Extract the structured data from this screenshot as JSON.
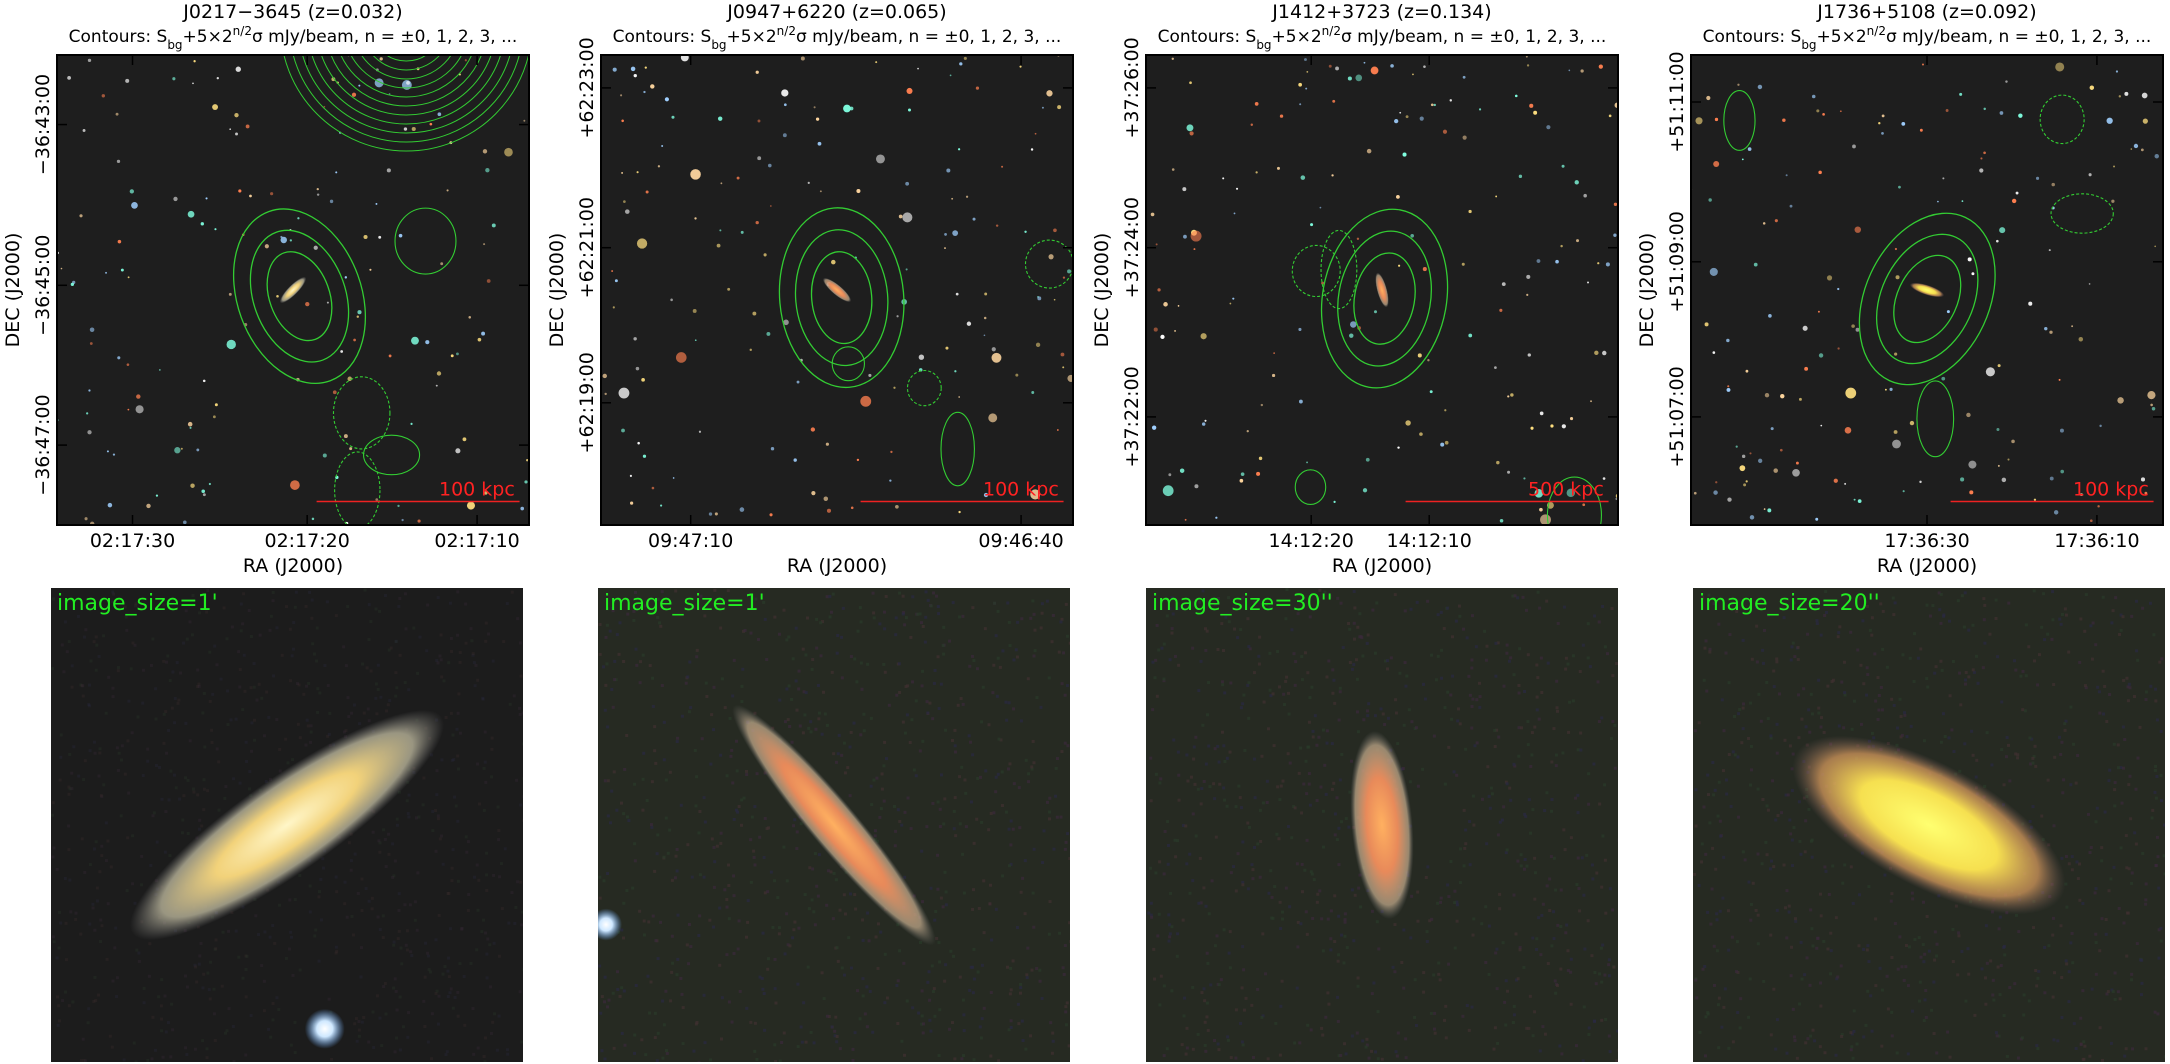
{
  "contour_label": {
    "prefix": "Contours: S",
    "sub": "bg",
    "mid": "+5×2",
    "sup": "n/2",
    "suffix": "σ mJy/beam, n = ±0, 1, 2, 3, ..."
  },
  "axis_labels": {
    "x": "RA (J2000)",
    "y": "DEC (J2000)"
  },
  "panels": [
    {
      "title": "J0217−3645 (z=0.032)",
      "yticks": [
        "−36:43:00",
        "−36:45:00",
        "−36:47:00"
      ],
      "xticks": [
        "02:17:30",
        "02:17:20",
        "02:17:10"
      ],
      "scale_bar": "100 kpc",
      "image_size": "image_size=1'"
    },
    {
      "title": "J0947+6220 (z=0.065)",
      "yticks": [
        "+62:23:00",
        "+62:21:00",
        "+62:19:00"
      ],
      "xticks": [
        "09:47:10",
        "09:46:40"
      ],
      "scale_bar": "100 kpc",
      "image_size": "image_size=1'"
    },
    {
      "title": "J1412+3723 (z=0.134)",
      "yticks": [
        "+37:26:00",
        "+37:24:00",
        "+37:22:00"
      ],
      "xticks": [
        "14:12:20",
        "14:12:10"
      ],
      "scale_bar": "500 kpc",
      "image_size": "image_size=30''"
    },
    {
      "title": "J1736+5108 (z=0.092)",
      "yticks": [
        "+51:11:00",
        "+51:09:00",
        "+51:07:00"
      ],
      "xticks": [
        "17:36:30",
        "17:36:10"
      ],
      "scale_bar": "100 kpc",
      "image_size": "image_size=20''"
    }
  ]
}
